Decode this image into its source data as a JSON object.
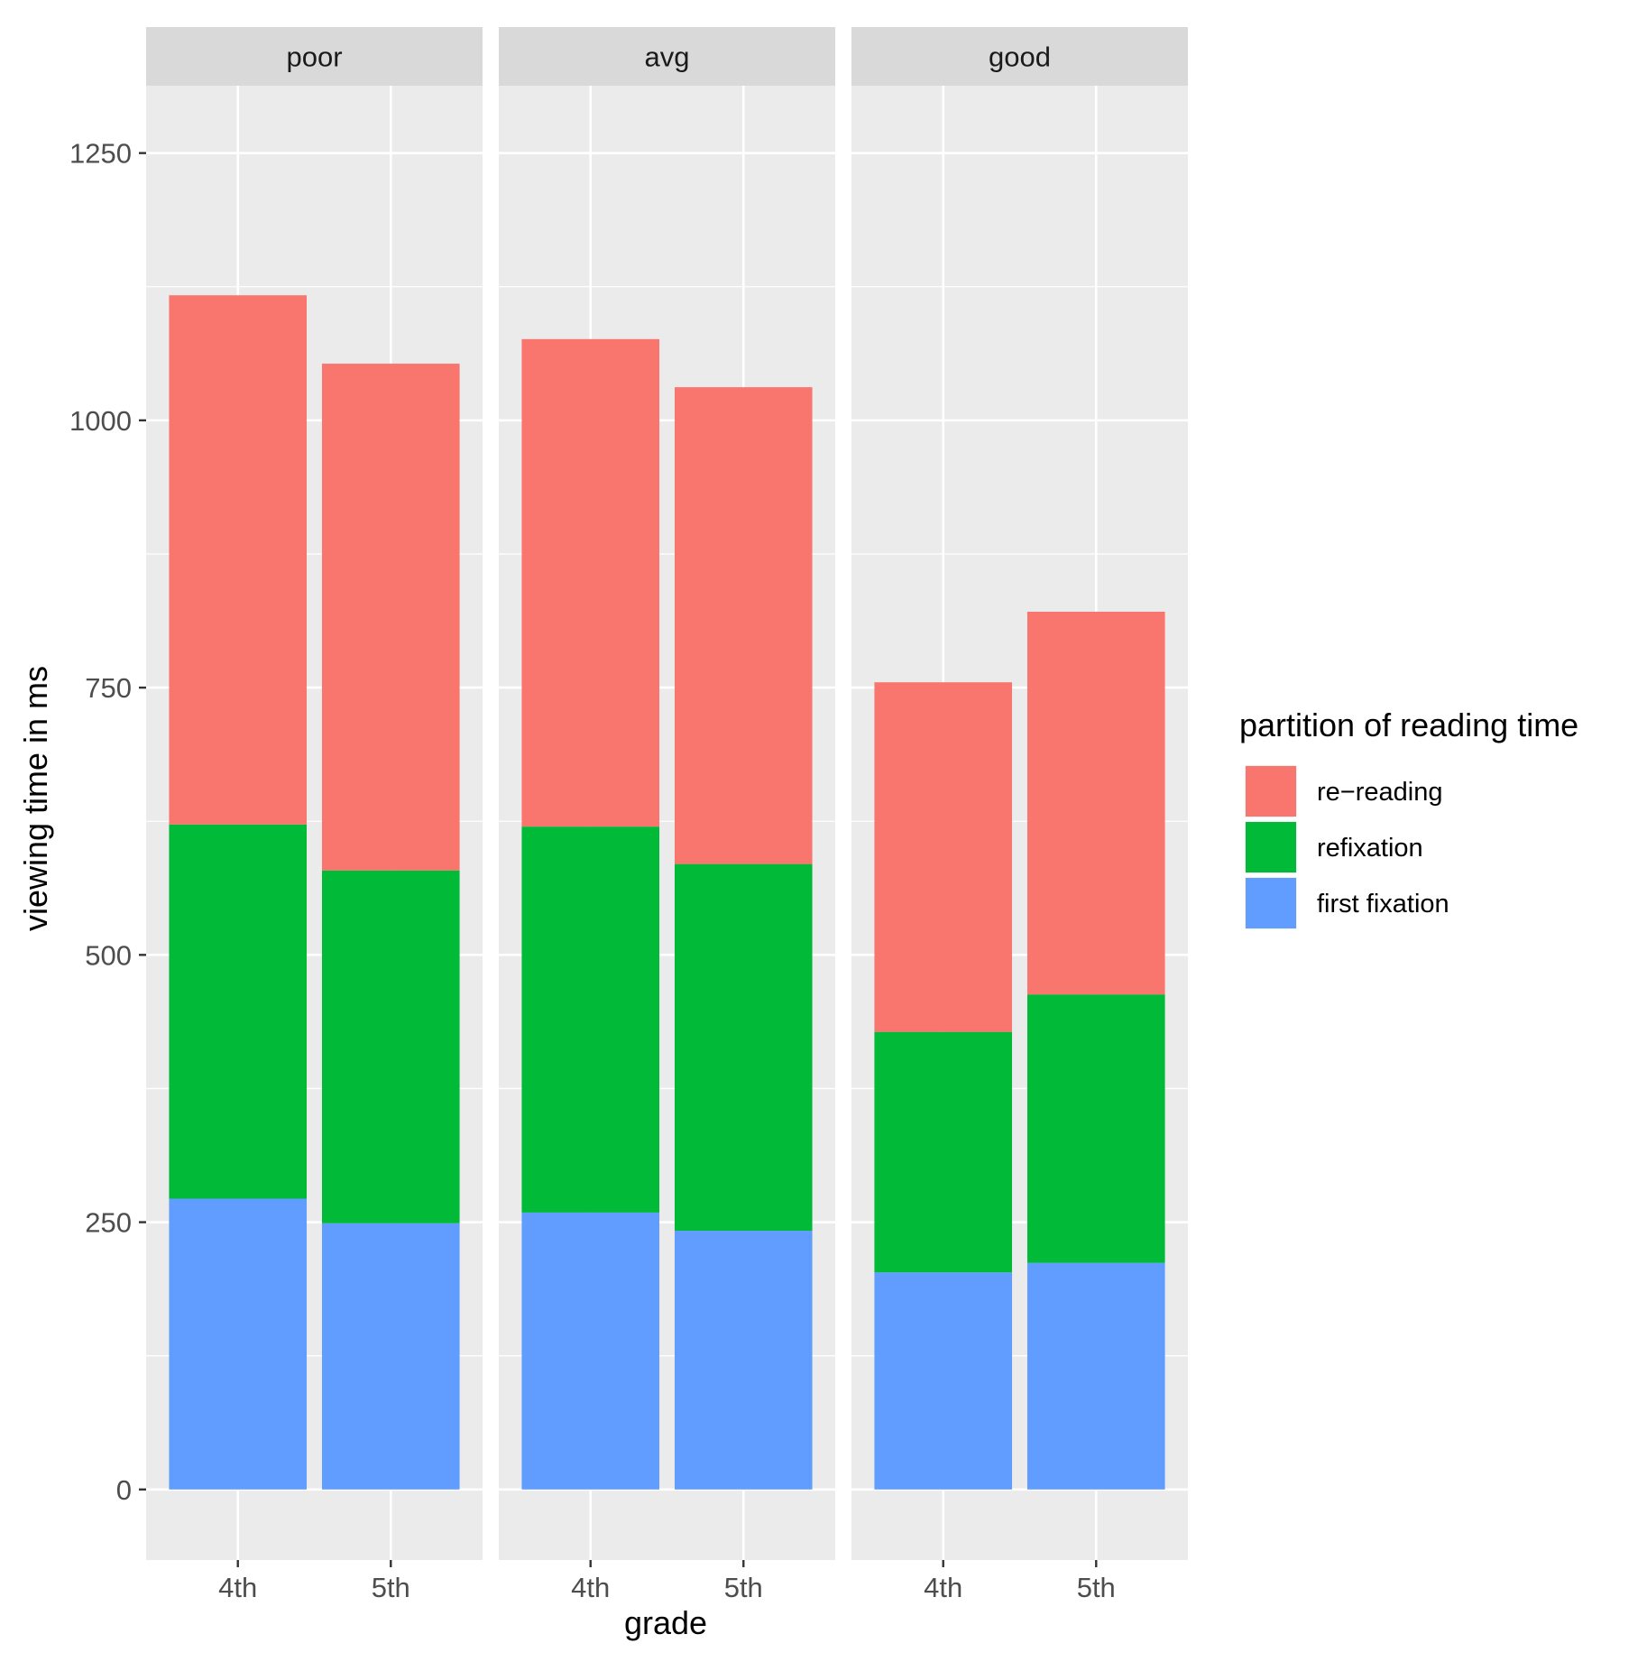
{
  "chart_data": {
    "type": "bar",
    "stacked": true,
    "facets": [
      "poor",
      "avg",
      "good"
    ],
    "categories": [
      "4th",
      "5th"
    ],
    "series": [
      {
        "name": "first fixation",
        "color": "#619cff",
        "values": {
          "poor": [
            272,
            249
          ],
          "avg": [
            259,
            242
          ],
          "good": [
            203,
            212
          ]
        }
      },
      {
        "name": "refixation",
        "color": "#00ba38",
        "values": {
          "poor": [
            350,
            330
          ],
          "avg": [
            361,
            343
          ],
          "good": [
            225,
            251
          ]
        }
      },
      {
        "name": "re−reading",
        "color": "#f8766d",
        "values": {
          "poor": [
            495,
            474
          ],
          "avg": [
            456,
            446
          ],
          "good": [
            327,
            358
          ]
        }
      }
    ],
    "xlabel": "grade",
    "ylabel": "viewing time in ms",
    "ylim": [
      -66,
      1313
    ],
    "yticks": [
      0,
      250,
      500,
      750,
      1000,
      1250
    ],
    "ytick_labels": [
      "0",
      "250",
      "500",
      "750",
      "1000",
      "1250"
    ],
    "legend": {
      "title": "partition of reading time",
      "entries": [
        "re−reading",
        "refixation",
        "first fixation"
      ],
      "placement": "right"
    },
    "panel_background": "#ebebeb",
    "strip_background": "#d9d9d9",
    "grid": true
  }
}
